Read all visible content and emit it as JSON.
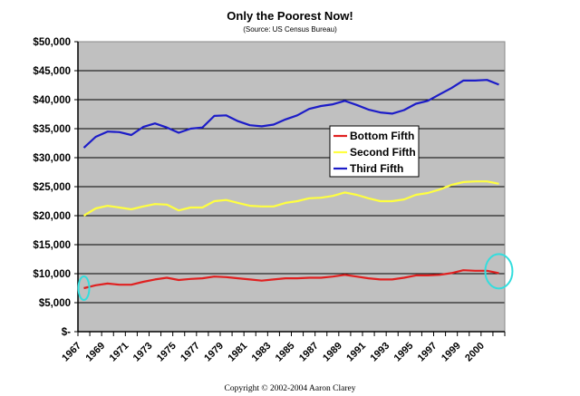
{
  "chart_data": {
    "type": "line",
    "title": "Only the Poorest Now!",
    "subtitle": "(Source: US Census Bureau)",
    "xlabel": "",
    "ylabel": "",
    "ylim": [
      0,
      50000
    ],
    "y_ticks": [
      0,
      5000,
      10000,
      15000,
      20000,
      25000,
      30000,
      35000,
      40000,
      45000,
      50000
    ],
    "y_tick_labels": [
      "$-",
      "$5,000",
      "$10,000",
      "$15,000",
      "$20,000",
      "$25,000",
      "$30,000",
      "$35,000",
      "$40,000",
      "$45,000",
      "$50,000"
    ],
    "x": [
      1967,
      1968,
      1969,
      1970,
      1971,
      1972,
      1973,
      1974,
      1975,
      1976,
      1977,
      1978,
      1979,
      1980,
      1981,
      1982,
      1983,
      1984,
      1985,
      1986,
      1987,
      1988,
      1989,
      1990,
      1991,
      1992,
      1993,
      1994,
      1995,
      1996,
      1997,
      1998,
      1999,
      2000,
      2001,
      2002
    ],
    "x_tick_labels": [
      "1967",
      "1969",
      "1971",
      "1973",
      "1975",
      "1977",
      "1979",
      "1981",
      "1983",
      "1985",
      "1987",
      "1989",
      "1991",
      "1993",
      "1995",
      "1997",
      "1999",
      "2000"
    ],
    "grid": true,
    "legend_position": "center-right",
    "series": [
      {
        "name": "Bottom Fifth",
        "color": "#e02020",
        "values": [
          7500,
          8000,
          8300,
          8100,
          8100,
          8600,
          9000,
          9300,
          8900,
          9100,
          9200,
          9500,
          9400,
          9200,
          9000,
          8800,
          9000,
          9200,
          9200,
          9300,
          9300,
          9500,
          9800,
          9500,
          9200,
          9000,
          9000,
          9300,
          9700,
          9700,
          9800,
          10100,
          10600,
          10500,
          10500,
          10100
        ]
      },
      {
        "name": "Second Fifth",
        "color": "#ffff40",
        "values": [
          20000,
          21250,
          21700,
          21400,
          21100,
          21600,
          22000,
          21900,
          20900,
          21400,
          21400,
          22500,
          22700,
          22200,
          21700,
          21600,
          21600,
          22200,
          22500,
          23000,
          23100,
          23400,
          24000,
          23600,
          23000,
          22500,
          22500,
          22800,
          23600,
          23900,
          24500,
          25300,
          25800,
          25900,
          25900,
          25500
        ]
      },
      {
        "name": "Third Fifth",
        "color": "#1c1cc8",
        "values": [
          31700,
          33600,
          34500,
          34400,
          33900,
          35300,
          35900,
          35200,
          34300,
          35000,
          35200,
          37200,
          37300,
          36300,
          35600,
          35400,
          35700,
          36600,
          37300,
          38400,
          38900,
          39200,
          39800,
          39100,
          38300,
          37800,
          37600,
          38200,
          39300,
          39800,
          40900,
          42000,
          43300,
          43300,
          43400,
          42600
        ]
      }
    ],
    "annotations": {
      "highlight_color": "#33dddd",
      "highlighted_points": [
        "Bottom Fifth 1967",
        "Bottom Fifth 2002"
      ]
    },
    "footer": "Copyright © 2002-2004 Aaron Clarey"
  }
}
